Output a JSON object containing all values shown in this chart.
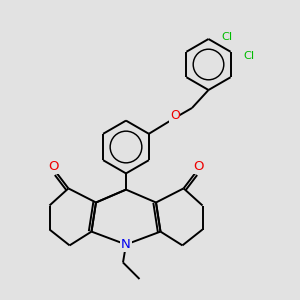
{
  "background_color": "#e2e2e2",
  "atom_colors": {
    "C": "#000000",
    "N": "#0000ee",
    "O": "#ee0000",
    "Cl": "#00bb00"
  },
  "bond_color": "#000000",
  "bond_width": 1.4,
  "figsize": [
    3.0,
    3.0
  ],
  "dpi": 100,
  "xlim": [
    0,
    10
  ],
  "ylim": [
    0,
    10
  ]
}
